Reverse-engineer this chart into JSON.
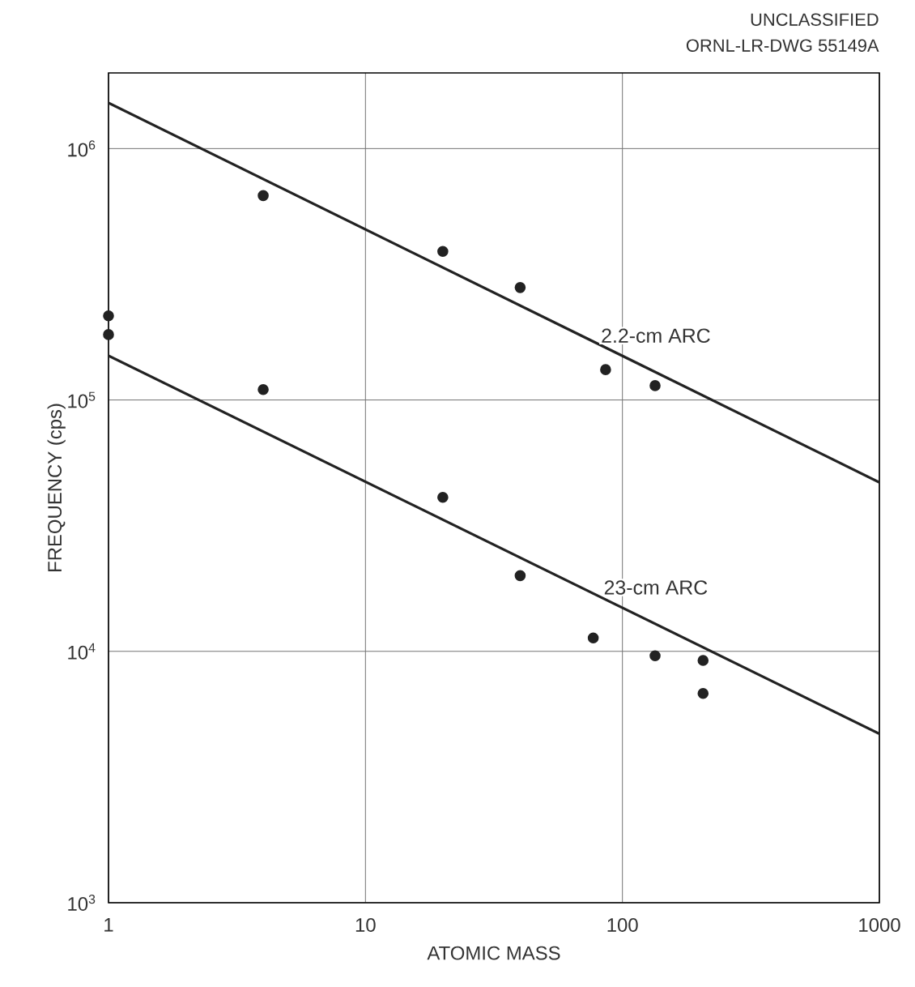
{
  "chart_data": {
    "type": "scatter",
    "xlabel": "ATOMIC MASS",
    "ylabel": "FREQUENCY (cps)",
    "annotations": [
      "UNCLASSIFIED",
      "ORNL-LR-DWG 55149A"
    ],
    "log": "xy",
    "xlim": [
      1,
      1000
    ],
    "ylim": [
      1000,
      2000000
    ],
    "xticks": [
      1,
      10,
      100,
      1000
    ],
    "yticks": [
      {
        "value": 1000,
        "label": "10$^{3}$"
      },
      {
        "value": 10000,
        "label": "10$^{4}$"
      },
      {
        "value": 100000,
        "label": "10$^{5}$"
      },
      {
        "value": 1000000,
        "label": "10$^{6}$"
      }
    ],
    "grid": true,
    "series": [
      {
        "color": "#222222",
        "marker": "circle",
        "x": [
          1,
          1,
          4,
          4,
          20,
          20,
          40,
          40,
          86,
          77,
          134,
          134,
          206,
          206
        ],
        "values": [
          216000,
          182000,
          650000,
          110000,
          390000,
          41000,
          280000,
          20000,
          132000,
          11300,
          114000,
          9600,
          9200,
          6800
        ]
      },
      {
        "name": "2.2-cm ARC",
        "type": "line",
        "color": "#222222",
        "x": [
          1,
          1000
        ],
        "values": [
          1520000,
          47000
        ]
      },
      {
        "name": "23-cm ARC",
        "type": "line",
        "color": "#222222",
        "x": [
          1,
          1000
        ],
        "values": [
          150000,
          4700
        ]
      }
    ]
  }
}
